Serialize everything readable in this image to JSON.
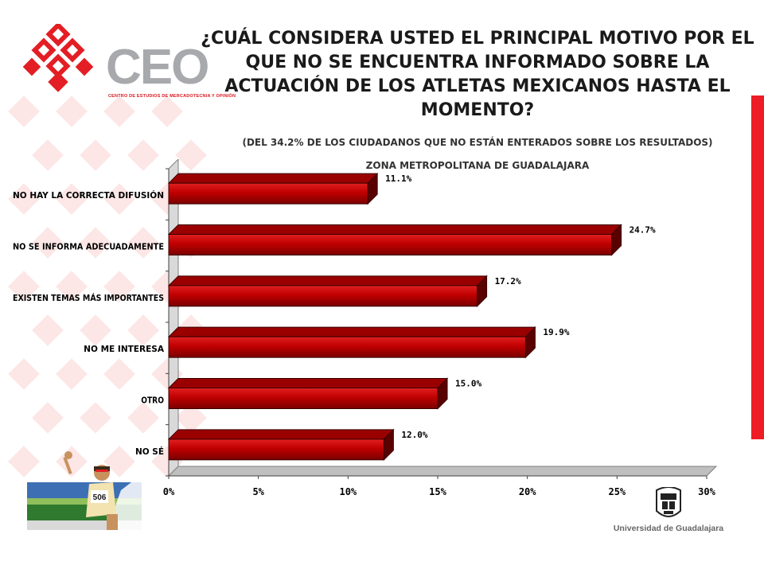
{
  "header": {
    "logo_text": "CEO",
    "logo_sub": "CENTRO DE ESTUDIOS DE MERCADOTECNIA Y OPINIÓN",
    "title": "¿CUÁL CONSIDERA USTED EL PRINCIPAL MOTIVO POR EL QUE NO SE ENCUENTRA INFORMADO SOBRE LA ACTUACIÓN DE LOS ATLETAS MEXICANOS HASTA EL MOMENTO?",
    "subtitle": "(DEL 34.2% DE LOS CIUDADANOS QUE NO ESTÁN ENTERADOS SOBRE LOS RESULTADOS)",
    "region": "ZONA METROPOLITANA DE GUADALAJARA"
  },
  "footer": {
    "university": "Universidad de Guadalajara",
    "athlete_bib": "506"
  },
  "colors": {
    "accent": "#ee1c25",
    "bar": "#c00000",
    "bar_dark": "#5a0000",
    "pattern": "#fde6e6"
  },
  "chart_data": {
    "type": "bar",
    "orientation": "horizontal",
    "categories": [
      "NO HAY LA CORRECTA DIFUSIÓN",
      "NO SE INFORMA ADECUADAMENTE",
      "EXISTEN TEMAS MÁS IMPORTANTES",
      "NO ME INTERESA",
      "OTRO",
      "NO SÉ"
    ],
    "values": [
      11.1,
      24.7,
      17.2,
      19.9,
      15.0,
      12.0
    ],
    "value_labels": [
      "11.1%",
      "24.7%",
      "17.2%",
      "19.9%",
      "15.0%",
      "12.0%"
    ],
    "xticks": [
      "0%",
      "5%",
      "10%",
      "15%",
      "20%",
      "25%",
      "30%"
    ],
    "xlim": [
      0,
      30
    ],
    "grid": false,
    "legend": "none",
    "style": "3d"
  }
}
